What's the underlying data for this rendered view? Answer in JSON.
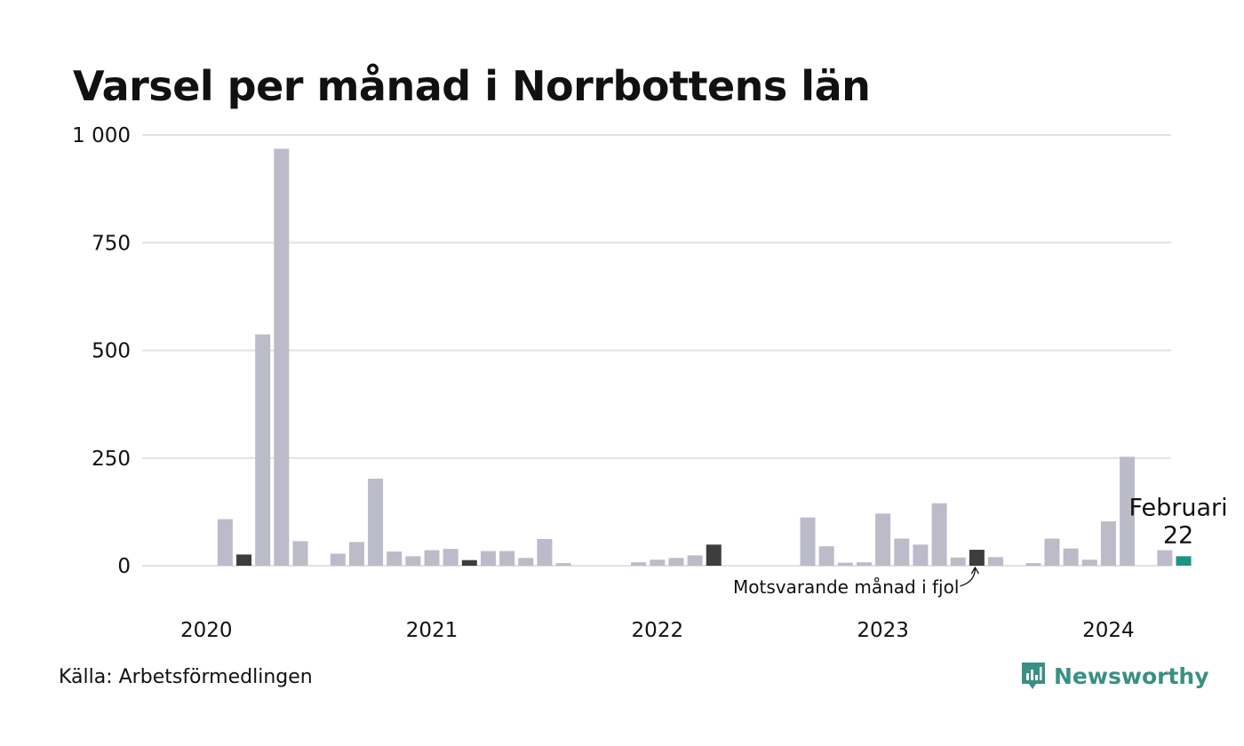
{
  "chart_data": {
    "type": "bar",
    "title": "Varsel per månad i Norrbottens län",
    "ylim": [
      0,
      1000
    ],
    "y_ticks": [
      0,
      250,
      500,
      750,
      1000
    ],
    "y_tick_labels": [
      "0",
      "250",
      "500",
      "750",
      "1 000"
    ],
    "x_year_labels": [
      "2020",
      "2021",
      "2022",
      "2023",
      "2024"
    ],
    "grid": true,
    "colors": {
      "default": "#bcbbc9",
      "previous_year": "#3d3d3d",
      "current": "#1a9683",
      "grid": "#e2e2e2"
    },
    "values": [
      null,
      null,
      108,
      26,
      537,
      968,
      57,
      null,
      28,
      55,
      202,
      33,
      22,
      36,
      39,
      13,
      34,
      34,
      18,
      62,
      6,
      null,
      null,
      null,
      8,
      14,
      18,
      24,
      49,
      null,
      null,
      null,
      null,
      112,
      45,
      7,
      8,
      121,
      63,
      49,
      145,
      19,
      37,
      20,
      null,
      6,
      63,
      40,
      14,
      103,
      253,
      null,
      36,
      22
    ],
    "previous_year_index": [
      3,
      15,
      28,
      42
    ],
    "current_index": 53,
    "annotation_current": {
      "label": "Februari",
      "value": "22"
    },
    "annotation_previous": "Motsvarande månad i fjol"
  },
  "source": "Källa: Arbetsförmedlingen",
  "brand": {
    "name": "Newsworthy",
    "icon": "newsworthy-logo-icon",
    "color": "#3a8f83"
  }
}
